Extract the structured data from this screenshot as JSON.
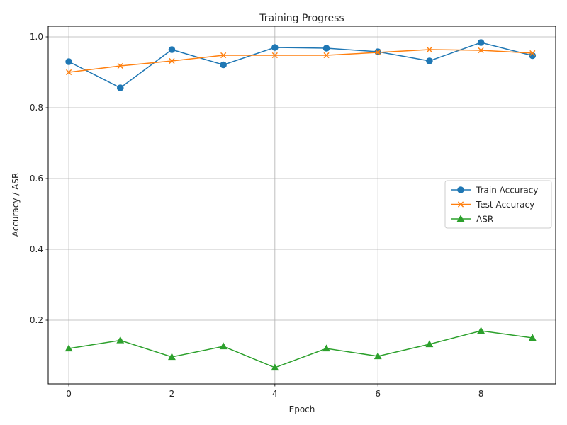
{
  "chart_data": {
    "type": "line",
    "title": "Training Progress",
    "xlabel": "Epoch",
    "ylabel": "Accuracy / ASR",
    "x": [
      0,
      1,
      2,
      3,
      4,
      5,
      6,
      7,
      8,
      9
    ],
    "xlim": [
      -0.4,
      9.45
    ],
    "ylim": [
      0.02,
      1.03
    ],
    "xticks": [
      0,
      2,
      4,
      6,
      8
    ],
    "yticks": [
      0.2,
      0.4,
      0.6,
      0.8,
      1.0
    ],
    "xtick_labels": [
      "0",
      "2",
      "4",
      "6",
      "8"
    ],
    "ytick_labels": [
      "0.2",
      "0.4",
      "0.6",
      "0.8",
      "1.0"
    ],
    "grid": true,
    "legend_position": "center-right",
    "series": [
      {
        "name": "Train Accuracy",
        "color": "#1f77b4",
        "marker": "circle",
        "values": [
          0.93,
          0.856,
          0.964,
          0.921,
          0.97,
          0.968,
          0.958,
          0.932,
          0.984,
          0.947
        ]
      },
      {
        "name": "Test Accuracy",
        "color": "#ff7f0e",
        "marker": "x",
        "values": [
          0.9,
          0.918,
          0.932,
          0.948,
          0.948,
          0.948,
          0.956,
          0.964,
          0.962,
          0.954
        ]
      },
      {
        "name": "ASR",
        "color": "#2ca02c",
        "marker": "triangle",
        "values": [
          0.12,
          0.143,
          0.096,
          0.126,
          0.066,
          0.12,
          0.098,
          0.132,
          0.17,
          0.15
        ]
      }
    ]
  }
}
